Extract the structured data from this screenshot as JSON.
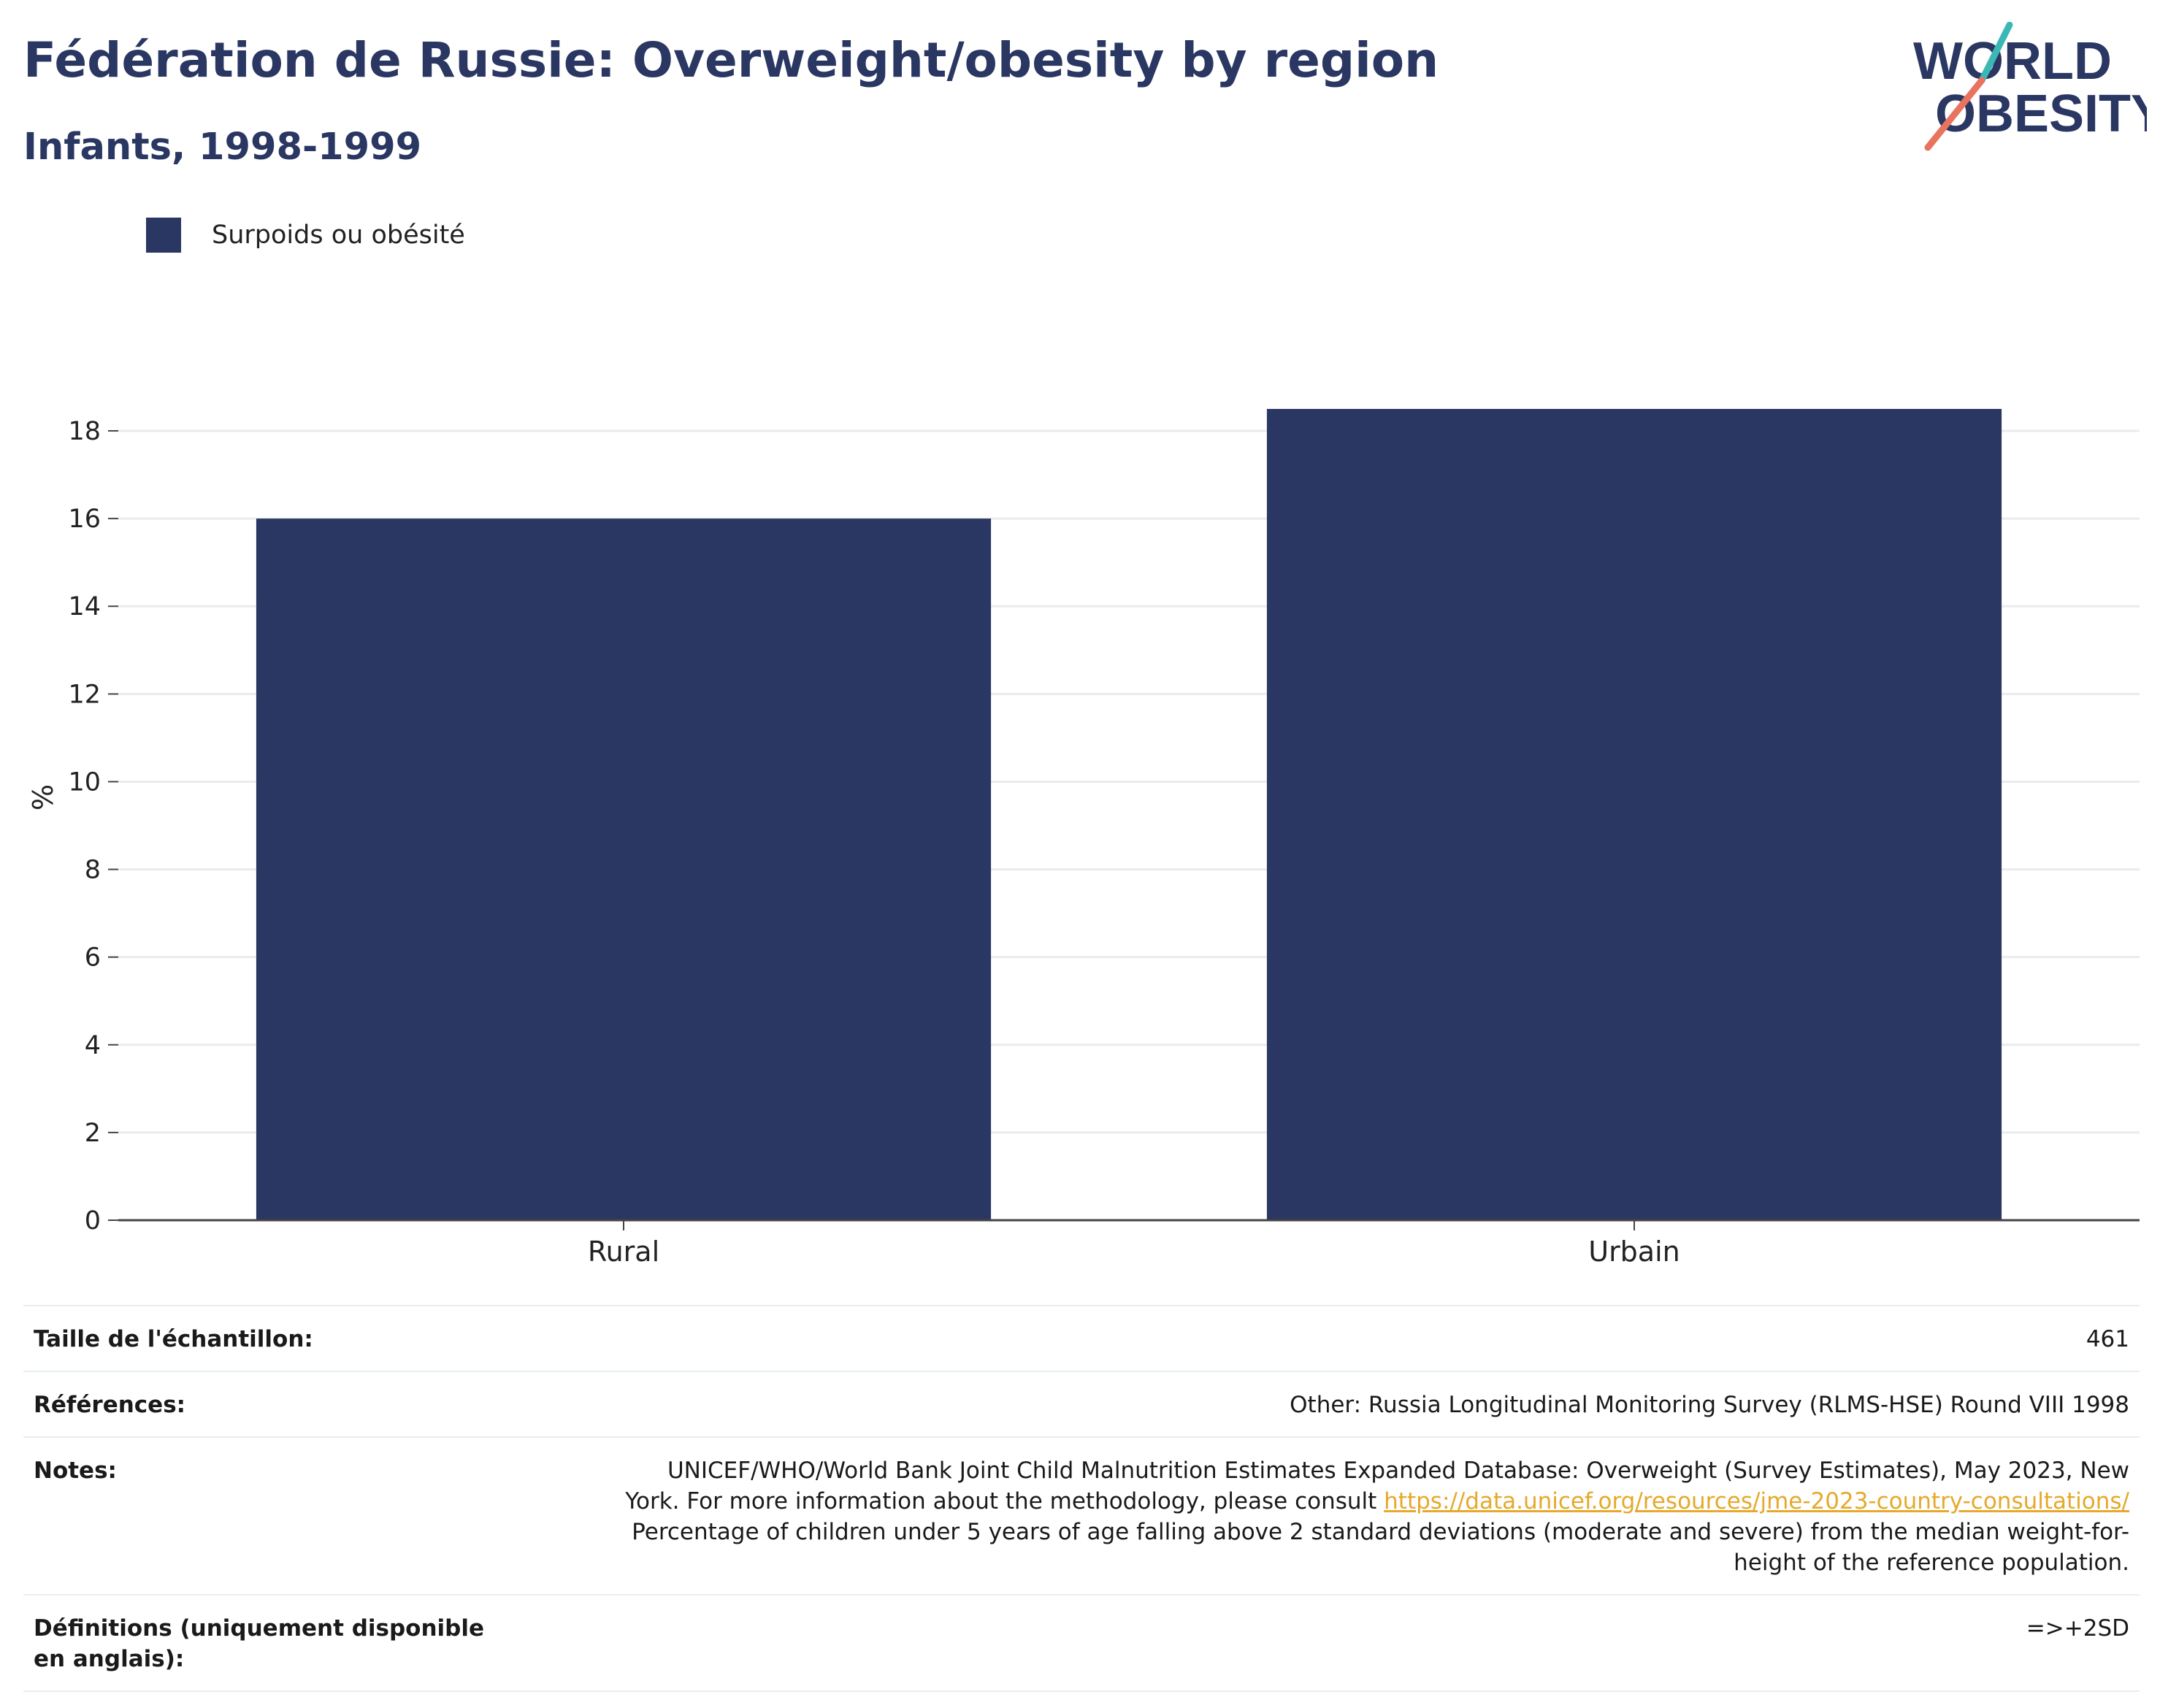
{
  "header": {
    "title": "Fédération de Russie: Overweight/obesity by region",
    "subtitle": "Infants, 1998-1999",
    "logo_text": [
      "WORLD",
      "OBESITY"
    ]
  },
  "legend": {
    "items": [
      {
        "label": "Surpoids ou obésité",
        "color": "#2b3763"
      }
    ]
  },
  "chart_data": {
    "type": "bar",
    "categories": [
      "Rural",
      "Urbain"
    ],
    "series": [
      {
        "name": "Surpoids ou obésité",
        "values": [
          16.0,
          18.5
        ],
        "color": "#2b3763"
      }
    ],
    "ylabel": "%",
    "xlabel": "",
    "ylim": [
      0,
      18.5
    ],
    "yticks": [
      0,
      2,
      4,
      6,
      8,
      10,
      12,
      14,
      16,
      18
    ],
    "grid": true,
    "legend_position": "top-left"
  },
  "meta": {
    "sample_size_label": "Taille de l'échantillon:",
    "sample_size_value": "461",
    "references_label": "Références:",
    "references_value": "Other: Russia Longitudinal Monitoring Survey (RLMS-HSE) Round VIII 1998",
    "notes_label": "Notes:",
    "notes_line1": "UNICEF/WHO/World Bank Joint Child Malnutrition Estimates Expanded Database: Overweight (Survey Estimates), May 2023, New",
    "notes_line2": "York. For more information about the methodology, please consult ",
    "notes_link": "https://data.unicef.org/resources/jme-2023-country-consultations/",
    "notes_line3": "Percentage of children under 5 years of age falling above 2 standard deviations (moderate and severe) from the median weight-for-",
    "notes_line4": "height of the reference population.",
    "definitions_label": "Définitions (uniquement disponible en anglais):",
    "definitions_value": "=>+2SD"
  }
}
